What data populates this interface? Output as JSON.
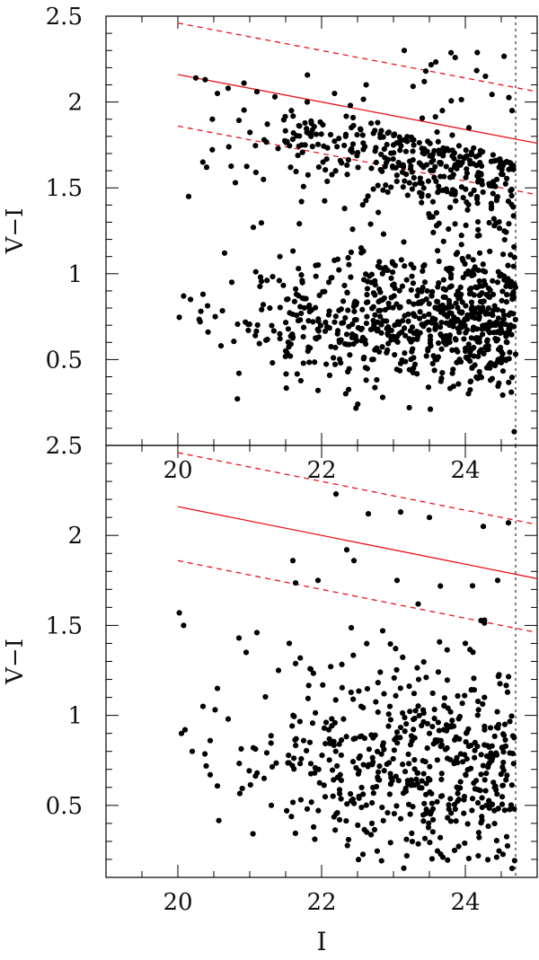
{
  "chart_data": [
    {
      "type": "scatter",
      "panel": "top",
      "xlabel": "",
      "ylabel": "V−I",
      "xlim": [
        19.0,
        25.0
      ],
      "ylim": [
        0.0,
        2.5
      ],
      "x_tick_labels": [
        "20",
        "22",
        "24"
      ],
      "y_tick_labels": [
        "0.5",
        "1",
        "1.5",
        "2",
        "2.5"
      ],
      "grid": false,
      "limit_line_x": 24.7,
      "relation": {
        "x": [
          20.0,
          25.0
        ],
        "y": [
          2.16,
          1.76
        ]
      },
      "relation_upper": {
        "x": [
          20.0,
          25.0
        ],
        "y": [
          2.46,
          2.06
        ]
      },
      "relation_lower": {
        "x": [
          20.0,
          25.0
        ],
        "y": [
          1.86,
          1.46
        ]
      },
      "marker_color": "#000000",
      "line_color": "#e8141b",
      "n_points": 1150,
      "points": [
        [
          20.08,
          0.87
        ],
        [
          20.15,
          1.45
        ],
        [
          20.25,
          2.14
        ],
        [
          20.31,
          0.72
        ],
        [
          20.35,
          0.88
        ],
        [
          20.38,
          2.13
        ],
        [
          20.4,
          1.62
        ],
        [
          20.42,
          0.66
        ],
        [
          20.48,
          1.9
        ],
        [
          20.52,
          0.75
        ],
        [
          20.55,
          2.05
        ],
        [
          20.6,
          0.58
        ],
        [
          20.65,
          1.12
        ],
        [
          20.7,
          2.08
        ],
        [
          20.75,
          0.95
        ],
        [
          20.8,
          1.53
        ],
        [
          20.85,
          0.42
        ],
        [
          20.92,
          2.11
        ],
        [
          20.98,
          0.67
        ],
        [
          21.05,
          1.27
        ],
        [
          21.1,
          2.06
        ],
        [
          21.15,
          0.98
        ],
        [
          21.2,
          1.78
        ],
        [
          21.28,
          0.8
        ],
        [
          21.35,
          2.03
        ],
        [
          21.42,
          1.1
        ],
        [
          21.5,
          0.55
        ],
        [
          21.58,
          1.95
        ],
        [
          21.65,
          0.88
        ],
        [
          21.72,
          1.42
        ],
        [
          21.8,
          2.0
        ],
        [
          21.88,
          0.72
        ],
        [
          21.95,
          0.32
        ],
        [
          22.02,
          1.65
        ],
        [
          22.1,
          0.95
        ],
        [
          22.18,
          2.05
        ],
        [
          22.25,
          0.6
        ],
        [
          22.32,
          1.38
        ],
        [
          22.4,
          1.98
        ],
        [
          22.48,
          0.82
        ],
        [
          22.55,
          1.15
        ],
        [
          22.62,
          2.1
        ],
        [
          22.7,
          0.5
        ],
        [
          22.78,
          1.88
        ],
        [
          22.85,
          0.28
        ],
        [
          22.92,
          1.02
        ],
        [
          23.0,
          1.75
        ],
        [
          23.08,
          0.65
        ],
        [
          23.15,
          2.3
        ],
        [
          23.22,
          0.22
        ],
        [
          23.3,
          1.52
        ],
        [
          23.38,
          0.9
        ],
        [
          23.45,
          2.18
        ],
        [
          23.52,
          0.58
        ],
        [
          23.6,
          1.28
        ],
        [
          23.68,
          1.95
        ],
        [
          23.75,
          0.75
        ],
        [
          23.82,
          0.42
        ],
        [
          23.9,
          1.65
        ],
        [
          23.98,
          0.62
        ],
        [
          24.05,
          1.85
        ],
        [
          24.12,
          0.52
        ],
        [
          24.2,
          1.12
        ],
        [
          24.28,
          2.15
        ],
        [
          24.35,
          0.38
        ],
        [
          24.42,
          0.7
        ],
        [
          24.5,
          1.58
        ],
        [
          24.58,
          0.6
        ],
        [
          24.65,
          1.95
        ],
        [
          24.68,
          0.08
        ]
      ]
    },
    {
      "type": "scatter",
      "panel": "bottom",
      "xlabel": "I",
      "ylabel": "V−I",
      "xlim": [
        19.0,
        25.0
      ],
      "ylim": [
        0.1,
        2.5
      ],
      "x_tick_labels": [
        "20",
        "22",
        "24"
      ],
      "y_tick_labels": [
        "0.5",
        "1",
        "1.5",
        "2",
        "2.5"
      ],
      "grid": false,
      "limit_line_x": 24.7,
      "relation": {
        "x": [
          20.0,
          25.0
        ],
        "y": [
          2.16,
          1.76
        ]
      },
      "relation_upper": {
        "x": [
          20.0,
          25.0
        ],
        "y": [
          2.46,
          2.06
        ]
      },
      "relation_lower": {
        "x": [
          20.0,
          25.0
        ],
        "y": [
          1.86,
          1.46
        ]
      },
      "marker_color": "#000000",
      "line_color": "#e8141b",
      "n_points": 560,
      "points": [
        [
          20.02,
          1.57
        ],
        [
          20.05,
          0.9
        ],
        [
          20.08,
          1.5
        ],
        [
          20.1,
          0.92
        ],
        [
          20.2,
          0.8
        ],
        [
          20.35,
          1.05
        ],
        [
          20.45,
          0.86
        ],
        [
          20.55,
          1.15
        ],
        [
          20.7,
          0.98
        ],
        [
          20.85,
          1.43
        ],
        [
          20.95,
          1.35
        ],
        [
          21.05,
          0.82
        ],
        [
          21.1,
          1.46
        ],
        [
          21.2,
          0.65
        ],
        [
          21.3,
          0.5
        ],
        [
          21.4,
          1.25
        ],
        [
          21.55,
          1.4
        ],
        [
          21.6,
          1.86
        ],
        [
          21.75,
          0.86
        ],
        [
          21.8,
          0.48
        ],
        [
          21.95,
          1.75
        ],
        [
          22.1,
          0.92
        ],
        [
          22.2,
          2.23
        ],
        [
          22.25,
          0.42
        ],
        [
          22.35,
          1.92
        ],
        [
          22.45,
          1.86
        ],
        [
          22.55,
          1.05
        ],
        [
          22.65,
          2.12
        ],
        [
          22.7,
          0.4
        ],
        [
          22.85,
          1.47
        ],
        [
          22.95,
          1.05
        ],
        [
          23.05,
          1.75
        ],
        [
          23.1,
          2.13
        ],
        [
          23.2,
          0.62
        ],
        [
          23.35,
          1.2
        ],
        [
          23.5,
          2.1
        ],
        [
          23.55,
          0.48
        ],
        [
          23.7,
          0.92
        ],
        [
          23.85,
          0.25
        ],
        [
          24.0,
          1.4
        ],
        [
          24.1,
          1.72
        ],
        [
          24.18,
          0.22
        ],
        [
          24.25,
          2.05
        ],
        [
          24.35,
          0.5
        ],
        [
          24.45,
          1.75
        ],
        [
          24.55,
          0.95
        ],
        [
          24.6,
          2.07
        ],
        [
          24.65,
          0.15
        ],
        [
          24.68,
          0.48
        ]
      ]
    }
  ]
}
